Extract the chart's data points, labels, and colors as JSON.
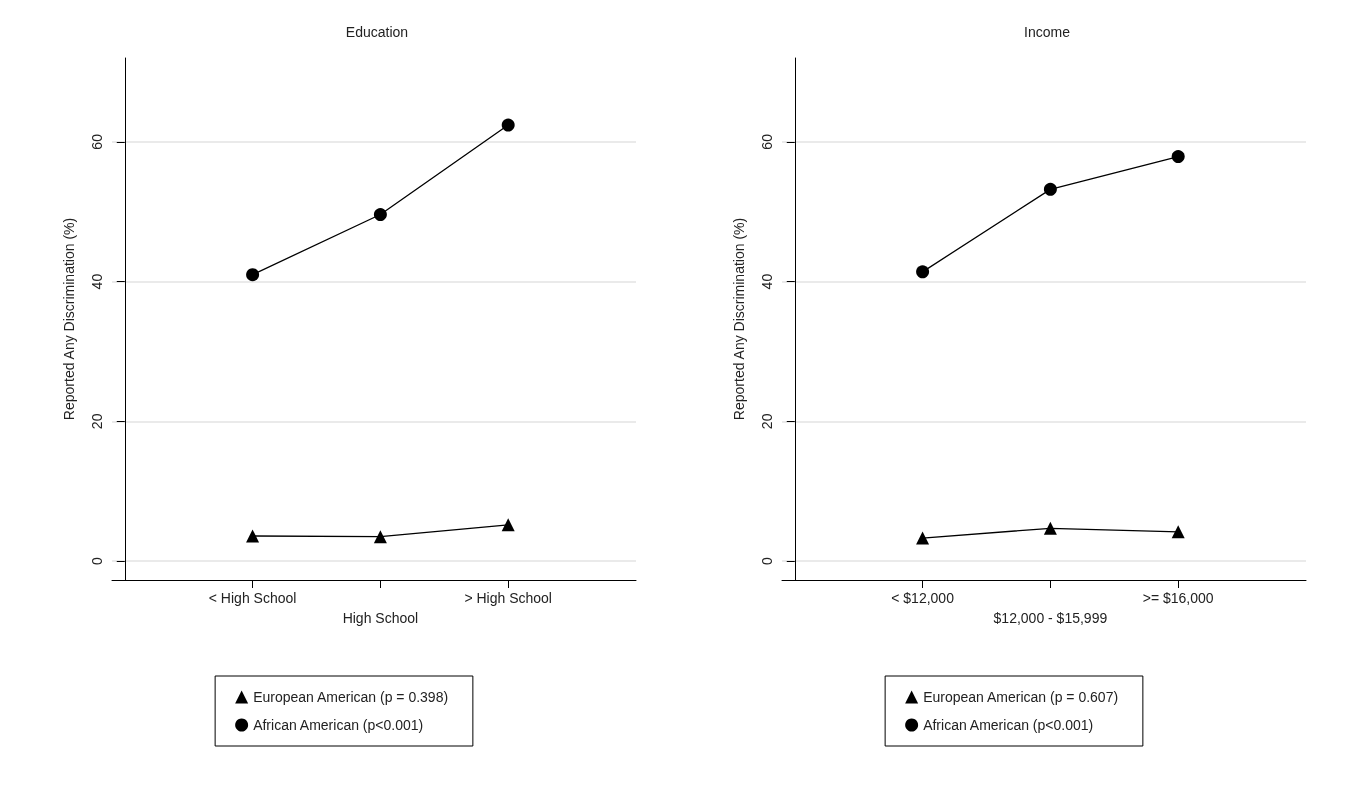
{
  "chart_data": [
    {
      "type": "line",
      "title": "Education",
      "ylabel": "Reported Any Discrimination (%)",
      "categories": [
        "< High School",
        "High School",
        "> High School"
      ],
      "series": [
        {
          "name": "European American (p = 0.398)",
          "color": "#000000",
          "marker": "triangle",
          "values": [
            3.6,
            3.5,
            5.2
          ]
        },
        {
          "name": "African American (p<0.001)",
          "color": "#000000",
          "marker": "circle",
          "values": [
            41.0,
            49.6,
            62.4
          ]
        }
      ],
      "ylim": [
        -2.7,
        72
      ],
      "yticks": [
        0,
        20,
        40,
        60
      ],
      "grid": "y",
      "legend": "bottom",
      "line_style": "solid"
    },
    {
      "type": "line",
      "title": "Income",
      "ylabel": "Reported Any Discrimination (%)",
      "categories": [
        "< $12,000",
        "$12,000 - $15,999",
        ">= $16,000"
      ],
      "series": [
        {
          "name": "European American (p = 0.607)",
          "color": "#000000",
          "marker": "triangle",
          "values": [
            3.3,
            4.7,
            4.2
          ]
        },
        {
          "name": "African American (p<0.001)",
          "color": "#000000",
          "marker": "circle",
          "values": [
            41.4,
            53.2,
            57.9
          ]
        }
      ],
      "ylim": [
        -2.7,
        72
      ],
      "yticks": [
        0,
        20,
        40,
        60
      ],
      "grid": "y",
      "legend": "bottom",
      "line_style": "solid"
    }
  ]
}
